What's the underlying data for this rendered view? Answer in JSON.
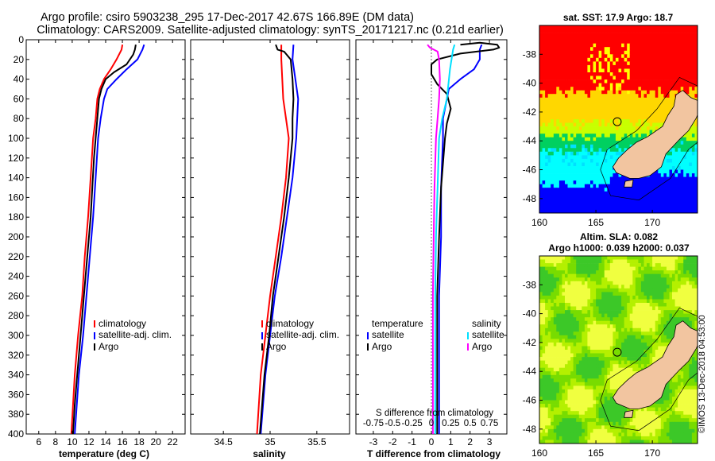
{
  "title": {
    "line1": "Argo profile: csiro 5903238_295 17-Dec-2017 42.67S 166.89E (DM data)",
    "line2": "Climatology: CARS2009. Satellite-adjusted climatology: synTS_20171217.nc (0.21d earlier)"
  },
  "colors": {
    "climatology": "#ff0000",
    "satellite": "#0000ff",
    "argo": "#000000",
    "sat_salinity": "#00e0ff",
    "argo_salinity": "#ff00ff",
    "land": "#f2c5a0"
  },
  "chart_data": [
    {
      "type": "line",
      "id": "temperature",
      "xlabel": "temperature (deg C)",
      "ylabel": "",
      "xlim": [
        4.5,
        23.5
      ],
      "ylim": [
        400,
        0
      ],
      "xticks": [
        6,
        8,
        10,
        12,
        14,
        16,
        18,
        20,
        22
      ],
      "xtick_labels": [
        "6",
        "8",
        "10",
        "12",
        "14",
        "16",
        "18",
        "20",
        "22"
      ],
      "yticks": [
        0,
        20,
        40,
        60,
        80,
        100,
        120,
        140,
        160,
        180,
        200,
        220,
        240,
        260,
        280,
        300,
        320,
        340,
        360,
        380,
        400
      ],
      "ytick_labels": [
        "0",
        "20",
        "40",
        "60",
        "80",
        "100",
        "120",
        "140",
        "160",
        "180",
        "200",
        "220",
        "240",
        "260",
        "280",
        "300",
        "320",
        "340",
        "360",
        "380",
        "400"
      ],
      "legend": [
        "climatology",
        "satellite-adj. clim.",
        "Argo"
      ],
      "series": [
        {
          "name": "climatology",
          "color": "#ff0000",
          "points": [
            [
              16.0,
              5
            ],
            [
              15.9,
              10
            ],
            [
              15.3,
              20
            ],
            [
              14.6,
              30
            ],
            [
              13.8,
              40
            ],
            [
              13.3,
              50
            ],
            [
              13.0,
              60
            ],
            [
              12.8,
              80
            ],
            [
              12.5,
              100
            ],
            [
              12.2,
              140
            ],
            [
              11.9,
              180
            ],
            [
              11.5,
              220
            ],
            [
              11.2,
              260
            ],
            [
              10.7,
              300
            ],
            [
              10.3,
              340
            ],
            [
              9.9,
              400
            ]
          ]
        },
        {
          "name": "satellite-adj. clim.",
          "color": "#0000ff",
          "points": [
            [
              18.6,
              5
            ],
            [
              18.4,
              10
            ],
            [
              17.8,
              20
            ],
            [
              16.5,
              30
            ],
            [
              15.3,
              40
            ],
            [
              14.2,
              50
            ],
            [
              13.8,
              60
            ],
            [
              13.4,
              80
            ],
            [
              13.1,
              100
            ],
            [
              12.8,
              140
            ],
            [
              12.5,
              180
            ],
            [
              12.1,
              220
            ],
            [
              11.7,
              260
            ],
            [
              11.3,
              300
            ],
            [
              10.8,
              340
            ],
            [
              10.3,
              400
            ]
          ]
        },
        {
          "name": "Argo",
          "color": "#000000",
          "points": [
            [
              17.6,
              5
            ],
            [
              17.5,
              10
            ],
            [
              17.3,
              15
            ],
            [
              16.5,
              25
            ],
            [
              15.0,
              33
            ],
            [
              14.0,
              40
            ],
            [
              13.5,
              50
            ],
            [
              13.2,
              60
            ],
            [
              13.0,
              80
            ],
            [
              12.8,
              100
            ],
            [
              12.6,
              120
            ],
            [
              12.4,
              150
            ],
            [
              12.2,
              180
            ],
            [
              11.9,
              210
            ],
            [
              11.6,
              240
            ],
            [
              11.2,
              280
            ],
            [
              10.9,
              310
            ],
            [
              10.6,
              340
            ],
            [
              10.3,
              370
            ],
            [
              10.1,
              400
            ]
          ]
        }
      ]
    },
    {
      "type": "line",
      "id": "salinity",
      "xlabel": "salinity",
      "xlim": [
        34.15,
        35.85
      ],
      "ylim": [
        400,
        0
      ],
      "xticks": [
        34.5,
        35,
        35.5
      ],
      "xtick_labels": [
        "34.5",
        "35",
        "35.5"
      ],
      "legend": [
        "climatology",
        "satellite-adj. clim.",
        "Argo"
      ],
      "series": [
        {
          "name": "climatology",
          "color": "#ff0000",
          "points": [
            [
              35.12,
              5
            ],
            [
              35.12,
              20
            ],
            [
              35.13,
              40
            ],
            [
              35.14,
              60
            ],
            [
              35.17,
              80
            ],
            [
              35.2,
              100
            ],
            [
              35.17,
              140
            ],
            [
              35.12,
              180
            ],
            [
              35.06,
              220
            ],
            [
              35.0,
              260
            ],
            [
              34.95,
              300
            ],
            [
              34.9,
              340
            ],
            [
              34.86,
              400
            ]
          ]
        },
        {
          "name": "satellite-adj. clim.",
          "color": "#0000ff",
          "points": [
            [
              35.25,
              5
            ],
            [
              35.24,
              20
            ],
            [
              35.27,
              40
            ],
            [
              35.3,
              60
            ],
            [
              35.29,
              80
            ],
            [
              35.28,
              100
            ],
            [
              35.24,
              140
            ],
            [
              35.18,
              180
            ],
            [
              35.12,
              220
            ],
            [
              35.05,
              260
            ],
            [
              35.0,
              300
            ],
            [
              34.95,
              340
            ],
            [
              34.9,
              400
            ]
          ]
        },
        {
          "name": "Argo",
          "color": "#000000",
          "points": [
            [
              35.06,
              5
            ],
            [
              35.08,
              10
            ],
            [
              35.15,
              12
            ],
            [
              35.22,
              20
            ],
            [
              35.24,
              40
            ],
            [
              35.25,
              60
            ],
            [
              35.24,
              80
            ],
            [
              35.24,
              100
            ],
            [
              35.2,
              140
            ],
            [
              35.15,
              180
            ],
            [
              35.09,
              220
            ],
            [
              35.03,
              260
            ],
            [
              34.99,
              300
            ],
            [
              34.94,
              340
            ],
            [
              34.89,
              400
            ]
          ]
        }
      ]
    },
    {
      "type": "line",
      "id": "difference",
      "xlabel": "T difference from climatology",
      "secondary_xlabel": "S difference from climatology",
      "xlim": [
        -3.9,
        3.9
      ],
      "ylim": [
        400,
        0
      ],
      "xticks": [
        -3,
        -2,
        -1,
        0,
        1,
        2,
        3
      ],
      "xtick_labels": [
        "-3",
        "-2",
        "-1",
        "0",
        "1",
        "2",
        "3"
      ],
      "secondary_xtick_labels": [
        "-0.75",
        "-0.5",
        "-0.25",
        "0",
        "0.25",
        "0.5",
        "0.75"
      ],
      "legend_temperature": {
        "title": "temperature",
        "items": [
          "satellite",
          "Argo"
        ]
      },
      "legend_salinity": {
        "title": "salinity",
        "items": [
          "satellite",
          "Argo"
        ]
      },
      "series": [
        {
          "name": "satellite (temperature)",
          "color": "#0000ff",
          "points": [
            [
              2.6,
              5
            ],
            [
              2.5,
              10
            ],
            [
              2.5,
              20
            ],
            [
              2.2,
              30
            ],
            [
              1.5,
              40
            ],
            [
              0.9,
              50
            ],
            [
              0.8,
              60
            ],
            [
              0.6,
              80
            ],
            [
              0.6,
              100
            ],
            [
              0.5,
              150
            ],
            [
              0.5,
              200
            ],
            [
              0.4,
              260
            ],
            [
              0.4,
              300
            ],
            [
              0.4,
              360
            ],
            [
              0.4,
              400
            ]
          ]
        },
        {
          "name": "Argo (temperature)",
          "color": "#000000",
          "points": [
            [
              1.5,
              5
            ],
            [
              2.5,
              3
            ],
            [
              3.4,
              5
            ],
            [
              3.5,
              8
            ],
            [
              3.2,
              10
            ],
            [
              1.5,
              14
            ],
            [
              0.3,
              20
            ],
            [
              0.0,
              25
            ],
            [
              0.0,
              35
            ],
            [
              0.3,
              45
            ],
            [
              0.8,
              55
            ],
            [
              1.0,
              70
            ],
            [
              0.8,
              85
            ],
            [
              0.7,
              100
            ],
            [
              0.5,
              150
            ],
            [
              0.4,
              200
            ],
            [
              0.3,
              260
            ],
            [
              0.3,
              300
            ],
            [
              0.3,
              360
            ],
            [
              0.3,
              400
            ]
          ]
        },
        {
          "name": "satellite (salinity)",
          "color": "#00e0ff",
          "points": [
            [
              0.3,
              5
            ],
            [
              0.28,
              10
            ],
            [
              0.24,
              30
            ],
            [
              0.2,
              60
            ],
            [
              0.14,
              80
            ],
            [
              0.1,
              100
            ],
            [
              0.08,
              150
            ],
            [
              0.06,
              200
            ],
            [
              0.05,
              260
            ],
            [
              0.05,
              300
            ],
            [
              0.05,
              360
            ],
            [
              0.05,
              400
            ]
          ]
        },
        {
          "name": "Argo (salinity)",
          "color": "#ff00ff",
          "points": [
            [
              -0.05,
              5
            ],
            [
              -0.02,
              8
            ],
            [
              0.08,
              12
            ],
            [
              0.1,
              20
            ],
            [
              0.11,
              40
            ],
            [
              0.1,
              60
            ],
            [
              0.08,
              80
            ],
            [
              0.06,
              100
            ],
            [
              0.04,
              150
            ],
            [
              0.03,
              200
            ],
            [
              0.02,
              260
            ],
            [
              0.02,
              300
            ],
            [
              0.02,
              360
            ],
            [
              0.02,
              400
            ]
          ]
        }
      ]
    },
    {
      "type": "heatmap",
      "id": "sst-map",
      "title": "sat. SST: 17.9 Argo: 18.7",
      "xlim": [
        160,
        174
      ],
      "ylim": [
        -49,
        -36
      ],
      "xticks": [
        160,
        165,
        170
      ],
      "xtick_labels": [
        "160",
        "165",
        "170"
      ],
      "yticks": [
        -38,
        -40,
        -42,
        -44,
        -46,
        -48
      ],
      "ytick_labels": [
        "-38",
        "-40",
        "-42",
        "-44",
        "-46",
        "-48"
      ],
      "argo_position": [
        166.89,
        -42.67
      ]
    },
    {
      "type": "heatmap",
      "id": "sla-map",
      "title": "Altim. SLA: 0.082",
      "subtitle": "Argo h1000: 0.039 h2000: 0.037",
      "xlim": [
        160,
        174
      ],
      "ylim": [
        -49,
        -36
      ],
      "xticks": [
        160,
        165,
        170
      ],
      "xtick_labels": [
        "160",
        "165",
        "170"
      ],
      "yticks": [
        -38,
        -40,
        -42,
        -44,
        -46,
        -48
      ],
      "ytick_labels": [
        "-38",
        "-40",
        "-42",
        "-44",
        "-46",
        "-48"
      ],
      "argo_position": [
        166.89,
        -42.67
      ]
    }
  ],
  "stamp": "©IMOS 13-Dec-2018 04:53:00"
}
